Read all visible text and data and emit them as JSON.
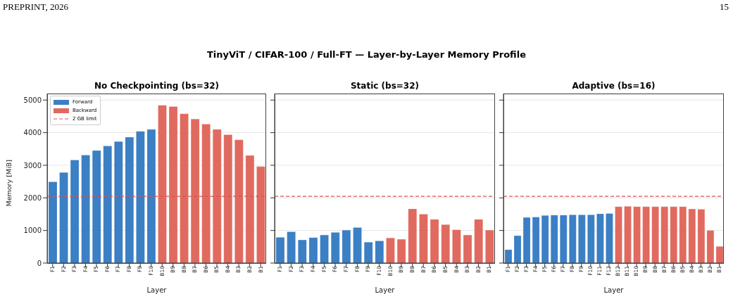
{
  "chart_data": [
    {
      "type": "bar",
      "title": "No Checkpointing (bs=32)",
      "xlabel": "Layer",
      "ylabel": "Memory [MiB]",
      "annotations": [
        "PREPRINT, 2026",
        "15",
        "TinyViT / CIFAR-100 / Full-FT — Layer-by-Layer Memory Profile"
      ],
      "categories": [
        "F1",
        "F2",
        "F3",
        "F4",
        "F5",
        "F6",
        "F7",
        "F8",
        "F9",
        "F10",
        "B10",
        "B9",
        "B8",
        "B7",
        "B6",
        "B5",
        "B4",
        "B3",
        "B2",
        "B1"
      ],
      "series": [
        {
          "name": "Forward",
          "color": "#3b7fc4",
          "values": [
            2490,
            2780,
            3160,
            3310,
            3450,
            3590,
            3730,
            3860,
            4040,
            4100,
            null,
            null,
            null,
            null,
            null,
            null,
            null,
            null,
            null,
            null
          ]
        },
        {
          "name": "Backward",
          "color": "#e06a5f",
          "values": [
            null,
            null,
            null,
            null,
            null,
            null,
            null,
            null,
            null,
            null,
            4840,
            4800,
            4580,
            4420,
            4260,
            4100,
            3940,
            3780,
            3300,
            2960
          ]
        }
      ],
      "ylim": [
        0,
        5200
      ],
      "yticks": [
        0,
        1000,
        2000,
        3000,
        4000,
        5000
      ],
      "grid": "y",
      "legend": "top left",
      "ref_lines": [
        {
          "axis": "y",
          "value": 2048,
          "label": "2 GB limit",
          "color": "#d9534f",
          "line_style": "dashed"
        }
      ]
    },
    {
      "type": "bar",
      "title": "Static (bs=32)",
      "xlabel": "Layer",
      "categories": [
        "F1",
        "F2",
        "F3",
        "F4",
        "F5",
        "F6",
        "F7",
        "F8",
        "F9",
        "F10",
        "B10",
        "B9",
        "B8",
        "B7",
        "B6",
        "B5",
        "B4",
        "B3",
        "B2",
        "B1"
      ],
      "series": [
        {
          "color": "#3b7fc4",
          "values": [
            790,
            960,
            710,
            780,
            860,
            940,
            1010,
            1090,
            640,
            680,
            null,
            null,
            null,
            null,
            null,
            null,
            null,
            null,
            null,
            null
          ]
        },
        {
          "color": "#e06a5f",
          "values": [
            null,
            null,
            null,
            null,
            null,
            null,
            null,
            null,
            null,
            null,
            770,
            730,
            1660,
            1500,
            1340,
            1180,
            1020,
            860,
            1340,
            1010
          ]
        }
      ],
      "ylim": [
        0,
        5200
      ],
      "yticks": [
        0,
        1000,
        2000,
        3000,
        4000,
        5000
      ],
      "grid": "y",
      "tick_labels": "x",
      "ref_lines": [
        {
          "axis": "y",
          "value": 2048,
          "color": "#d9534f",
          "line_style": "dashed"
        }
      ]
    },
    {
      "type": "bar",
      "title": "Adaptive (bs=16)",
      "xlabel": "Layer",
      "categories": [
        "F1",
        "F2",
        "F3",
        "F4",
        "F5",
        "F6",
        "F7",
        "F8",
        "F9",
        "F10",
        "F11",
        "F12",
        "B12",
        "B11",
        "B10",
        "B9",
        "B8",
        "B7",
        "B6",
        "B5",
        "B4",
        "B3",
        "B2",
        "B1"
      ],
      "series": [
        {
          "color": "#3b7fc4",
          "values": [
            410,
            840,
            1400,
            1410,
            1460,
            1470,
            1470,
            1480,
            1480,
            1480,
            1510,
            1520,
            null,
            null,
            null,
            null,
            null,
            null,
            null,
            null,
            null,
            null,
            null,
            null
          ]
        },
        {
          "color": "#e06a5f",
          "values": [
            null,
            null,
            null,
            null,
            null,
            null,
            null,
            null,
            null,
            null,
            null,
            null,
            1730,
            1740,
            1730,
            1730,
            1730,
            1730,
            1730,
            1730,
            1660,
            1650,
            1000,
            510
          ]
        }
      ],
      "ylim": [
        0,
        5200
      ],
      "yticks": [
        0,
        1000,
        2000,
        3000,
        4000,
        5000
      ],
      "grid": "y",
      "tick_labels": "x",
      "ref_lines": [
        {
          "axis": "y",
          "value": 2048,
          "color": "#d9534f",
          "line_style": "dashed"
        }
      ]
    }
  ]
}
